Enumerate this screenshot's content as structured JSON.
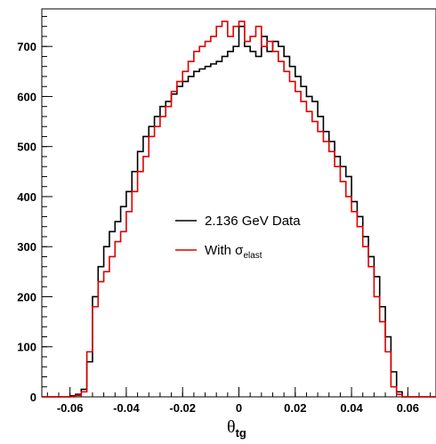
{
  "chart_data": {
    "type": "line",
    "x_label": {
      "main": "θ",
      "sub": "tg"
    },
    "xlim": [
      -0.07,
      0.07
    ],
    "ylim": [
      0,
      775
    ],
    "x_ticks": [
      -0.06,
      -0.04,
      -0.02,
      0,
      0.02,
      0.04,
      0.06
    ],
    "x_tick_labels": [
      "-0.06",
      "-0.04",
      "-0.02",
      "0",
      "0.02",
      "0.04",
      "0.06"
    ],
    "y_ticks": [
      0,
      100,
      200,
      300,
      400,
      500,
      600,
      700
    ],
    "y_tick_labels": [
      "0",
      "100",
      "200",
      "300",
      "400",
      "500",
      "600",
      "700"
    ],
    "grid": false,
    "legend_position": "center",
    "series": [
      {
        "name": "2.136 GeV Data",
        "color": "#000000",
        "x": [
          -0.07,
          -0.068,
          -0.066,
          -0.064,
          -0.062,
          -0.06,
          -0.058,
          -0.056,
          -0.054,
          -0.052,
          -0.05,
          -0.048,
          -0.046,
          -0.044,
          -0.042,
          -0.04,
          -0.038,
          -0.036,
          -0.034,
          -0.032,
          -0.03,
          -0.028,
          -0.026,
          -0.024,
          -0.022,
          -0.02,
          -0.018,
          -0.016,
          -0.014,
          -0.012,
          -0.01,
          -0.008,
          -0.006,
          -0.004,
          -0.002,
          0,
          0.002,
          0.004,
          0.006,
          0.008,
          0.01,
          0.012,
          0.014,
          0.016,
          0.018,
          0.02,
          0.022,
          0.024,
          0.026,
          0.028,
          0.03,
          0.032,
          0.034,
          0.036,
          0.038,
          0.04,
          0.042,
          0.044,
          0.046,
          0.048,
          0.05,
          0.052,
          0.054,
          0.056,
          0.058,
          0.06,
          0.062,
          0.064,
          0.066,
          0.068
        ],
        "y": [
          0,
          0,
          0,
          0,
          0,
          2,
          5,
          15,
          70,
          200,
          260,
          300,
          330,
          350,
          380,
          410,
          450,
          490,
          520,
          540,
          560,
          580,
          590,
          605,
          620,
          630,
          640,
          650,
          655,
          660,
          665,
          670,
          680,
          690,
          700,
          740,
          700,
          690,
          680,
          720,
          690,
          710,
          700,
          680,
          660,
          640,
          620,
          600,
          590,
          560,
          530,
          510,
          480,
          460,
          440,
          390,
          360,
          320,
          280,
          240,
          180,
          120,
          50,
          10,
          0,
          0,
          0,
          0,
          0,
          0
        ]
      },
      {
        "name": "With σelast",
        "label_main": "With σ",
        "label_sub": "elast",
        "color": "#dd0000",
        "x": [
          -0.07,
          -0.068,
          -0.066,
          -0.064,
          -0.062,
          -0.06,
          -0.058,
          -0.056,
          -0.054,
          -0.052,
          -0.05,
          -0.048,
          -0.046,
          -0.044,
          -0.042,
          -0.04,
          -0.038,
          -0.036,
          -0.034,
          -0.032,
          -0.03,
          -0.028,
          -0.026,
          -0.024,
          -0.022,
          -0.02,
          -0.018,
          -0.016,
          -0.014,
          -0.012,
          -0.01,
          -0.008,
          -0.006,
          -0.004,
          -0.002,
          0,
          0.002,
          0.004,
          0.006,
          0.008,
          0.01,
          0.012,
          0.014,
          0.016,
          0.018,
          0.02,
          0.022,
          0.024,
          0.026,
          0.028,
          0.03,
          0.032,
          0.034,
          0.036,
          0.038,
          0.04,
          0.042,
          0.044,
          0.046,
          0.048,
          0.05,
          0.052,
          0.054,
          0.056,
          0.058,
          0.06,
          0.062,
          0.064,
          0.066,
          0.068
        ],
        "y": [
          0,
          0,
          0,
          0,
          0,
          0,
          3,
          10,
          90,
          180,
          230,
          250,
          280,
          310,
          330,
          370,
          410,
          450,
          480,
          520,
          540,
          560,
          580,
          610,
          630,
          650,
          670,
          690,
          700,
          710,
          720,
          740,
          750,
          720,
          740,
          750,
          710,
          720,
          740,
          700,
          710,
          690,
          670,
          650,
          630,
          610,
          590,
          570,
          550,
          530,
          510,
          490,
          460,
          430,
          400,
          370,
          340,
          300,
          260,
          200,
          150,
          90,
          20,
          5,
          0,
          0,
          0,
          0,
          0,
          0
        ]
      }
    ]
  }
}
